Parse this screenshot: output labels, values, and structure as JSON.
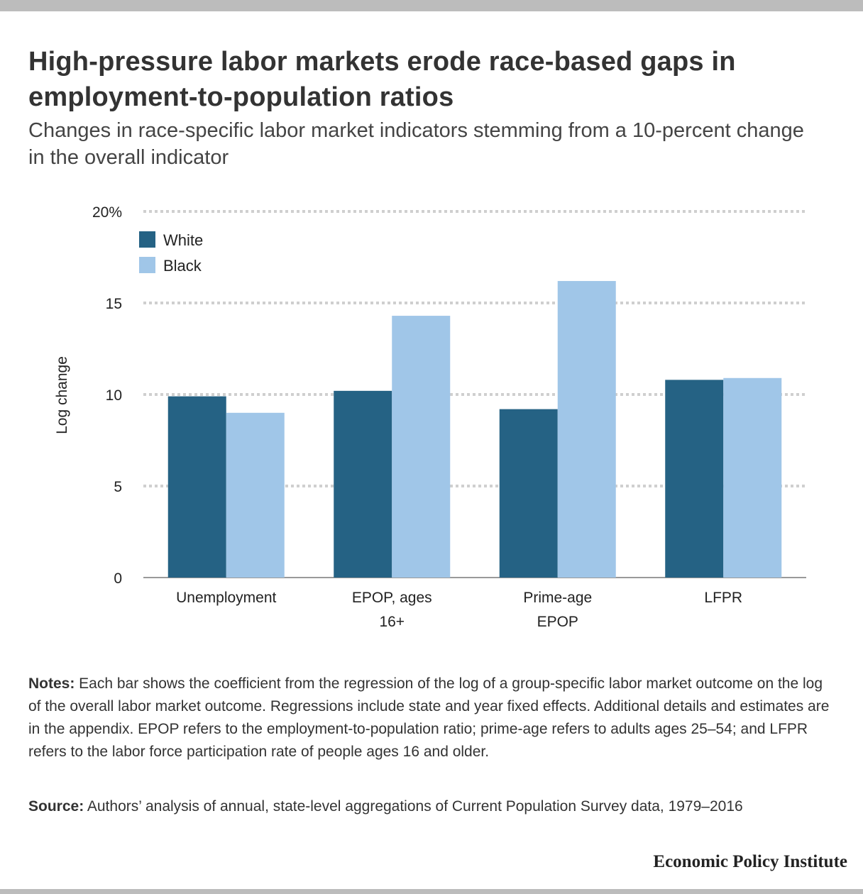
{
  "header": {
    "title": "High-pressure labor markets erode race-based gaps in employment-to-population ratios",
    "subtitle": "Changes in race-specific labor market indicators stemming from a 10-percent change in the overall indicator"
  },
  "chart_data": {
    "type": "bar",
    "categories": [
      [
        "Unemployment"
      ],
      [
        "EPOP, ages",
        "16+"
      ],
      [
        "Prime-age",
        "EPOP"
      ],
      [
        "LFPR"
      ]
    ],
    "series": [
      {
        "name": "White",
        "color": "#256284",
        "values": [
          9.9,
          10.2,
          9.2,
          10.8
        ]
      },
      {
        "name": "Black",
        "color": "#a0c6e8",
        "values": [
          9.0,
          14.3,
          16.2,
          10.9
        ]
      }
    ],
    "ylabel": "Log change",
    "ylim": [
      0,
      20
    ],
    "yticks": [
      {
        "value": 0,
        "label": "0"
      },
      {
        "value": 5,
        "label": "5"
      },
      {
        "value": 10,
        "label": "10"
      },
      {
        "value": 15,
        "label": "15"
      },
      {
        "value": 20,
        "label": "20%"
      }
    ],
    "grid": true,
    "legend_position": "top-left"
  },
  "footer": {
    "notes_label": "Notes:",
    "notes_text": " Each bar shows the coefficient from the regression of the log of a group-specific labor market outcome on the log of the overall labor market outcome. Regressions include state and year fixed effects. Additional details and estimates are in the appendix. EPOP refers to the employment-to-population ratio; prime-age refers to adults ages 25–54; and LFPR refers to the labor force participation rate of people ages 16 and older.",
    "source_label": "Source:",
    "source_text": " Authors’ analysis of annual, state-level aggregations of Current Population Survey data, 1979–2016",
    "brand": "Economic Policy Institute"
  }
}
